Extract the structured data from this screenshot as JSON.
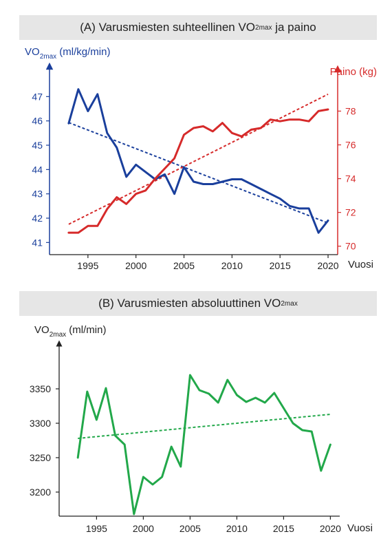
{
  "chart_data": [
    {
      "type": "line",
      "panel": "A",
      "title_main": "(A) Varusmiesten suhteellinen VO",
      "title_sub": "2max",
      "title_tail": " ja paino",
      "ylabel_left_main": "VO",
      "ylabel_left_sub": "2max",
      "ylabel_left_tail": " (ml/kg/min)",
      "ylabel_right": "Paino (kg)",
      "xlabel": "Vuosi",
      "xlim": [
        1991,
        2021
      ],
      "ylim_left": [
        40.5,
        48
      ],
      "ylim_right": [
        69.5,
        80.3
      ],
      "x_ticks": [
        1995,
        2000,
        2005,
        2010,
        2015,
        2020
      ],
      "y_ticks_left": [
        41,
        42,
        43,
        44,
        45,
        46,
        47
      ],
      "y_ticks_right": [
        70,
        72,
        74,
        76,
        78
      ],
      "colors": {
        "left": "#1a3f9c",
        "right": "#d62a2a"
      },
      "series": [
        {
          "axis": "left",
          "x": [
            1993,
            1994,
            1995,
            1996,
            1997,
            1998,
            1999,
            2000,
            2001,
            2002,
            2003,
            2004,
            2005,
            2006,
            2007,
            2008,
            2009,
            2010,
            2011,
            2012,
            2013,
            2014,
            2015,
            2016,
            2017,
            2018,
            2019,
            2020
          ],
          "values": [
            45.9,
            47.3,
            46.4,
            47.1,
            45.5,
            44.9,
            43.7,
            44.2,
            43.9,
            43.6,
            43.8,
            43.0,
            44.1,
            43.5,
            43.4,
            43.4,
            43.5,
            43.6,
            43.6,
            43.4,
            43.2,
            43.0,
            42.8,
            42.5,
            42.4,
            42.4,
            41.4,
            41.9
          ]
        },
        {
          "axis": "right",
          "x": [
            1993,
            1994,
            1995,
            1996,
            1997,
            1998,
            1999,
            2000,
            2001,
            2002,
            2003,
            2004,
            2005,
            2006,
            2007,
            2008,
            2009,
            2010,
            2011,
            2012,
            2013,
            2014,
            2015,
            2016,
            2017,
            2018,
            2019,
            2020
          ],
          "values": [
            70.8,
            70.8,
            71.2,
            71.2,
            72.2,
            72.9,
            72.5,
            73.1,
            73.3,
            74.0,
            74.6,
            75.2,
            76.6,
            77.0,
            77.1,
            76.8,
            77.3,
            76.7,
            76.5,
            76.9,
            77.0,
            77.5,
            77.4,
            77.5,
            77.5,
            77.4,
            78.0,
            78.1
          ]
        }
      ],
      "trends": [
        {
          "axis": "left",
          "x": [
            1993,
            2020
          ],
          "values": [
            45.93,
            41.8
          ]
        },
        {
          "axis": "right",
          "x": [
            1993,
            2020
          ],
          "values": [
            71.3,
            79.0
          ]
        }
      ]
    },
    {
      "type": "line",
      "panel": "B",
      "title_main": "(B) Varusmiesten absoluuttinen VO",
      "title_sub": "2max",
      "title_tail": "",
      "ylabel_main": "VO",
      "ylabel_sub": "2max",
      "ylabel_tail": " (ml/min)",
      "xlabel": "Vuosi",
      "xlim": [
        1991,
        2021
      ],
      "ylim": [
        3165,
        3410
      ],
      "x_ticks": [
        1995,
        2000,
        2005,
        2010,
        2015,
        2020
      ],
      "y_ticks": [
        3200,
        3250,
        3300,
        3350
      ],
      "color": "#22a84a",
      "series": [
        {
          "x": [
            1993,
            1994,
            1995,
            1996,
            1997,
            1998,
            1999,
            2000,
            2001,
            2002,
            2003,
            2004,
            2005,
            2006,
            2007,
            2008,
            2009,
            2010,
            2011,
            2012,
            2013,
            2014,
            2015,
            2016,
            2017,
            2018,
            2019,
            2020
          ],
          "values": [
            3250,
            3346,
            3305,
            3351,
            3282,
            3269,
            3168,
            3222,
            3211,
            3222,
            3266,
            3237,
            3370,
            3348,
            3343,
            3330,
            3363,
            3341,
            3331,
            3337,
            3330,
            3344,
            3322,
            3300,
            3290,
            3288,
            3231,
            3269
          ]
        }
      ],
      "trend": {
        "x": [
          1993,
          2020
        ],
        "values": [
          3278,
          3313
        ]
      }
    }
  ]
}
